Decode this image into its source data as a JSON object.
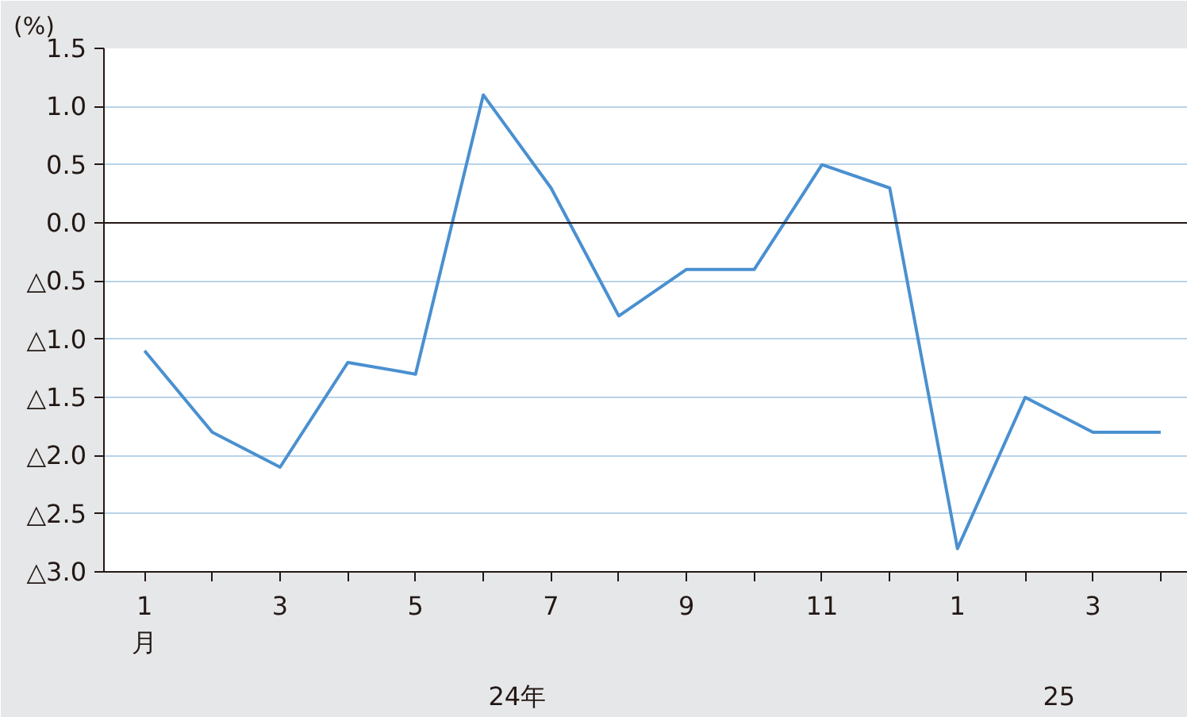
{
  "chart_data": {
    "type": "line",
    "ylabel": "(%)",
    "categories": [
      "1\n月",
      null,
      "3",
      null,
      "5",
      null,
      "7",
      null,
      "9",
      null,
      "11",
      null,
      "1",
      null,
      "3",
      null
    ],
    "values": [
      -1.1,
      -1.8,
      -2.1,
      -1.2,
      -1.3,
      1.1,
      0.3,
      -0.8,
      -0.4,
      -0.4,
      0.5,
      0.3,
      -2.8,
      -1.5,
      -1.8,
      -1.8
    ],
    "color": "#4a90d0",
    "ylim": [
      -3.0,
      1.5
    ],
    "yticks": [
      {
        "value": 1.5,
        "label": "1.5"
      },
      {
        "value": 1.0,
        "label": "1.0"
      },
      {
        "value": 0.5,
        "label": "0.5"
      },
      {
        "value": 0.0,
        "label": "0.0"
      },
      {
        "value": -0.5,
        "label": "△0.5"
      },
      {
        "value": -1.0,
        "label": "△1.0"
      },
      {
        "value": -1.5,
        "label": "△1.5"
      },
      {
        "value": -2.0,
        "label": "△2.0"
      },
      {
        "value": -2.5,
        "label": "△2.5"
      },
      {
        "value": -3.0,
        "label": "△3.0"
      }
    ],
    "grid": "y",
    "marker": "none",
    "line_style": "solid",
    "ref_lines": [
      {
        "axis": "y",
        "value": 0.0,
        "color": "#231815"
      }
    ],
    "annotations": [
      "24年",
      "25"
    ]
  }
}
